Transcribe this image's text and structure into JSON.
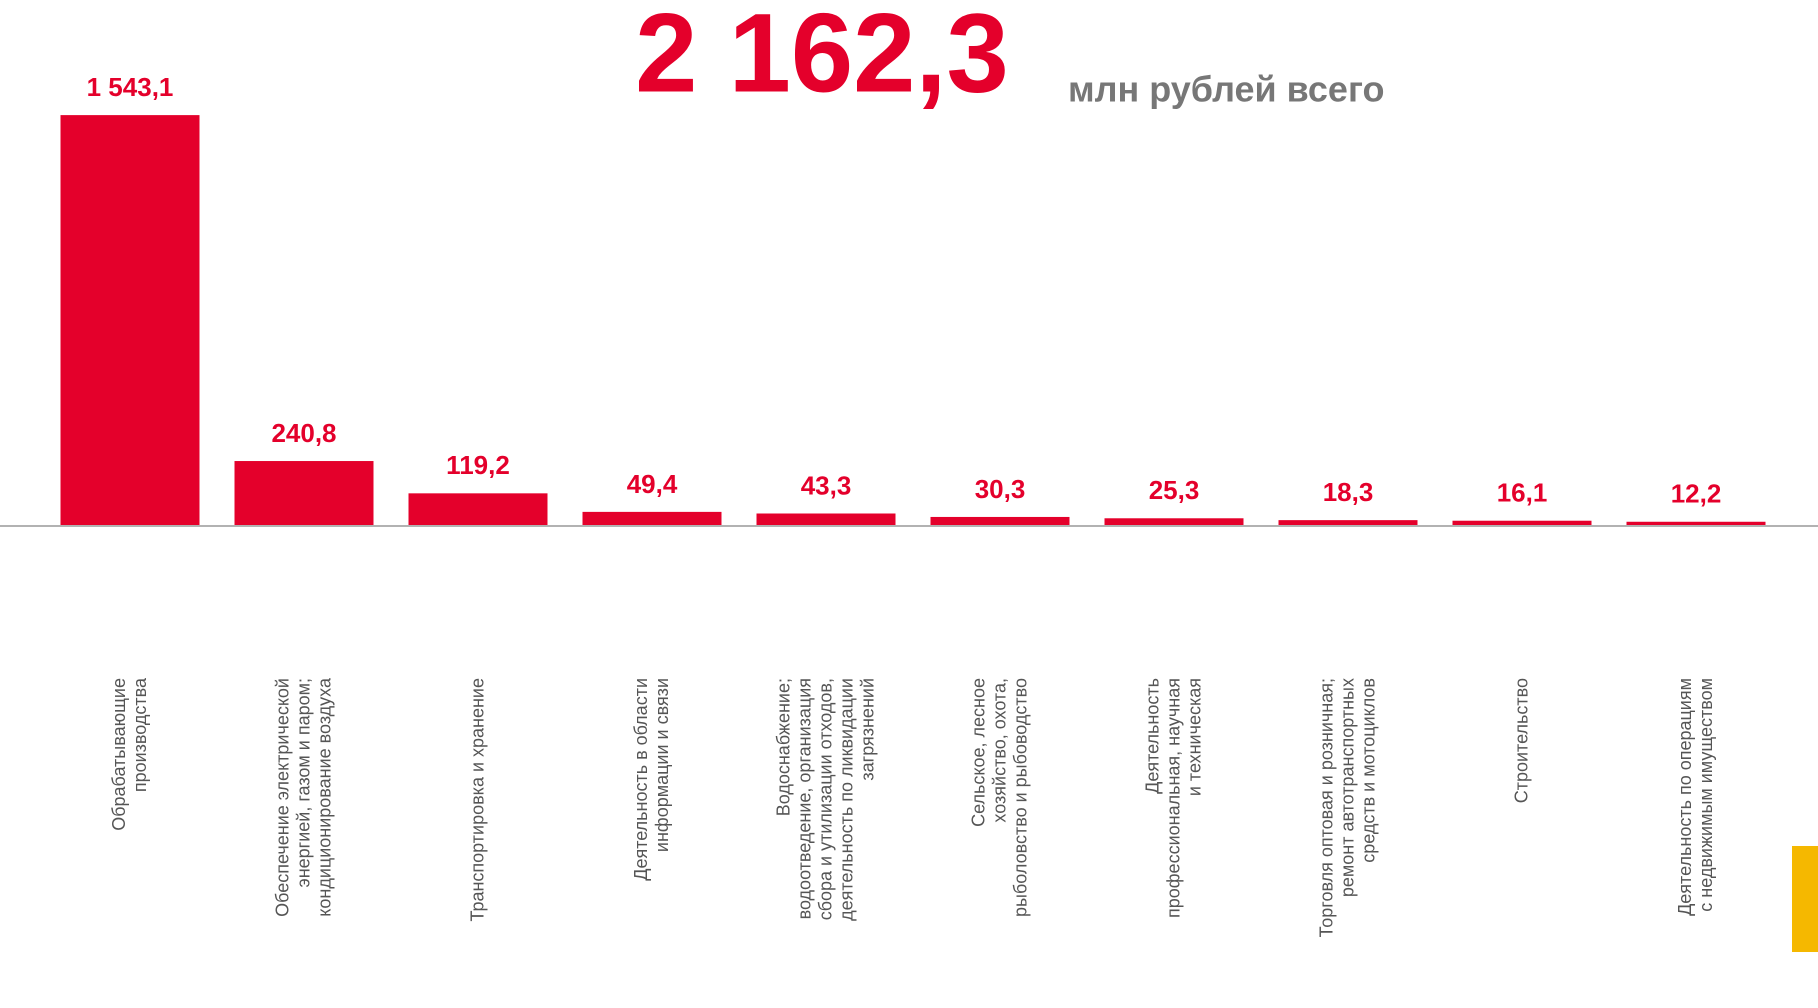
{
  "chart_data": {
    "type": "bar",
    "title": "2 162,3",
    "subtitle": "млн рублей всего",
    "categories": [
      "Обрабатывающие\nпроизводства",
      "Обеспечение электрической\nэнергией, газом и паром;\nкондиционирование воздуха",
      "Транспортировка и хранение",
      "Деятельность в области\nинформации и связи",
      "Водоснабжение;\nводоотведение, организация\nсбора и утилизации отходов,\nдеятельность по ликвидации\nзагрязнений",
      "Сельское, лесное\nхозяйство, охота,\nрыболовство и  рыбоводство",
      "Деятельность\nпрофессиональная, научная\nи техническая",
      "Торговля оптовая и розничная;\nремонт автотранспортных\nсредств и мотоциклов",
      "Строительство",
      "Деятельность по операциям\nс недвижимым имуществом"
    ],
    "values": [
      1543.1,
      240.8,
      119.2,
      49.4,
      43.3,
      30.3,
      25.3,
      18.3,
      16.1,
      12.2
    ],
    "value_labels": [
      "1 543,1",
      "240,8",
      "119,2",
      "49,4",
      "43,3",
      "30,3",
      "25,3",
      "18,3",
      "16,1",
      "12,2"
    ],
    "color": "#e4002b",
    "ylim": [
      0,
      1600
    ]
  }
}
